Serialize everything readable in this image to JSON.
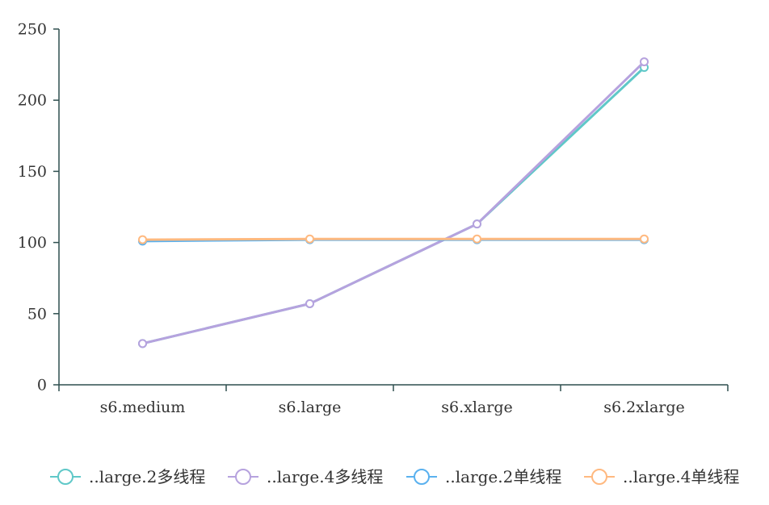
{
  "chart_data": {
    "type": "line",
    "title": "",
    "xlabel": "",
    "ylabel": "",
    "categories": [
      "s6.medium",
      "s6.large",
      "s6.xlarge",
      "s6.2xlarge"
    ],
    "ylim": [
      0,
      250
    ],
    "yticks": [
      0,
      50,
      100,
      150,
      200,
      250
    ],
    "grid": false,
    "legend_position": "bottom",
    "axis_color": "#2f4f4f",
    "series": [
      {
        "name": "..large.2多线程",
        "color": "#5fc8c8",
        "values": [
          29,
          57,
          113,
          223
        ]
      },
      {
        "name": "..large.4多线程",
        "color": "#b6a2de",
        "values": [
          29,
          57,
          113,
          227
        ]
      },
      {
        "name": "..large.2单线程",
        "color": "#5ab1ef",
        "values": [
          101,
          102,
          102,
          102
        ]
      },
      {
        "name": "..large.4单线程",
        "color": "#ffb980",
        "values": [
          102,
          102.5,
          102.5,
          102.5
        ]
      }
    ]
  }
}
